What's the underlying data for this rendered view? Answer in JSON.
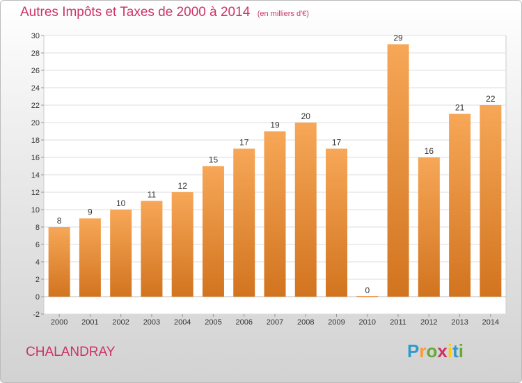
{
  "title": "Autres Impôts et Taxes de 2000 à 2014",
  "unit": "(en milliers d'€)",
  "commune": "CHALANDRAY",
  "brand": {
    "letters": [
      "P",
      "r",
      "o",
      "x",
      "i",
      "t",
      "i"
    ],
    "colors": [
      "#3399cc",
      "#ff9933",
      "#66aa33",
      "#cc3366",
      "#ffcc00",
      "#3399cc",
      "#66aa33"
    ]
  },
  "colors": {
    "bar_light": "#f6a757",
    "bar_dark": "#d2741f",
    "title": "#cc3366"
  },
  "chart_data": {
    "type": "bar",
    "categories": [
      "2000",
      "2001",
      "2002",
      "2003",
      "2004",
      "2005",
      "2006",
      "2007",
      "2008",
      "2009",
      "2010",
      "2011",
      "2012",
      "2013",
      "2014"
    ],
    "values": [
      8,
      9,
      10,
      11,
      12,
      15,
      17,
      19,
      20,
      17,
      0,
      29,
      16,
      21,
      22
    ],
    "ylim": [
      -2,
      30
    ],
    "yticks": [
      -2,
      0,
      2,
      4,
      6,
      8,
      10,
      12,
      14,
      16,
      18,
      20,
      22,
      24,
      26,
      28,
      30
    ],
    "grid": true
  }
}
